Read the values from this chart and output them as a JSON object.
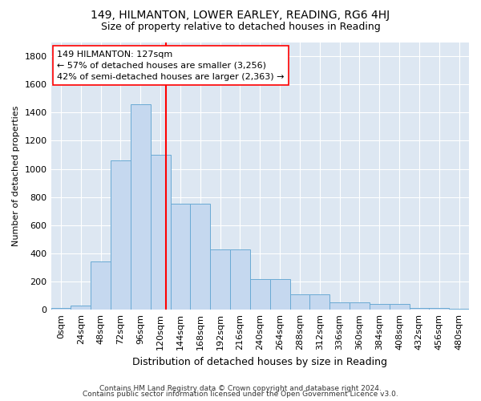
{
  "title": "149, HILMANTON, LOWER EARLEY, READING, RG6 4HJ",
  "subtitle": "Size of property relative to detached houses in Reading",
  "xlabel": "Distribution of detached houses by size in Reading",
  "ylabel": "Number of detached properties",
  "bar_color": "#c5d8ef",
  "bar_edge_color": "#6aaad4",
  "background_color": "#dde7f2",
  "categories": [
    "0sqm",
    "24sqm",
    "48sqm",
    "72sqm",
    "96sqm",
    "120sqm",
    "144sqm",
    "168sqm",
    "192sqm",
    "216sqm",
    "240sqm",
    "264sqm",
    "288sqm",
    "312sqm",
    "336sqm",
    "360sqm",
    "384sqm",
    "408sqm",
    "432sqm",
    "456sqm",
    "480sqm"
  ],
  "values": [
    10,
    30,
    340,
    1060,
    1460,
    1100,
    750,
    750,
    430,
    430,
    220,
    220,
    110,
    110,
    55,
    55,
    40,
    40,
    15,
    15,
    5
  ],
  "ylim": [
    0,
    1900
  ],
  "yticks": [
    0,
    200,
    400,
    600,
    800,
    1000,
    1200,
    1400,
    1600,
    1800
  ],
  "annotation_text": "149 HILMANTON: 127sqm\n← 57% of detached houses are smaller (3,256)\n42% of semi-detached houses are larger (2,363) →",
  "footer1": "Contains HM Land Registry data © Crown copyright and database right 2024.",
  "footer2": "Contains public sector information licensed under the Open Government Licence v3.0.",
  "title_fontsize": 10,
  "subtitle_fontsize": 9,
  "ylabel_fontsize": 8,
  "xlabel_fontsize": 9,
  "tick_fontsize": 8,
  "footer_fontsize": 6.5
}
